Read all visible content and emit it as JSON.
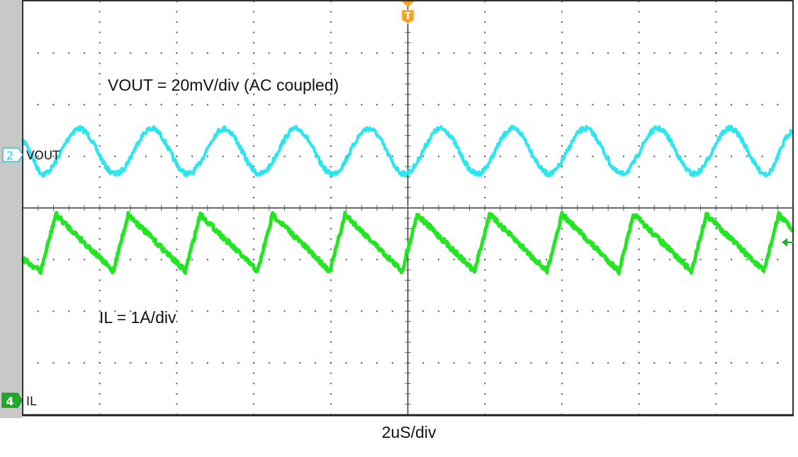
{
  "chart_data": {
    "type": "line",
    "annotations": {
      "vout_scale": "VOUT = 20mV/div (AC coupled)",
      "il_scale": "IL = 1A/div",
      "timebase": "2uS/div"
    },
    "x_unit": "us",
    "xlim": [
      -10,
      10
    ],
    "x_divisions": 10,
    "y_divisions": 8,
    "grid": true,
    "trigger_marker": "T",
    "series": [
      {
        "name": "VOUT",
        "channel": "2",
        "color": "#29e6f0",
        "unit": "mV",
        "scale_per_div": 20,
        "points": [
          [
            -10,
            4.9
          ],
          [
            -9.47,
            -7.5
          ],
          [
            -8.53,
            10
          ],
          [
            -7.59,
            -7.5
          ],
          [
            -6.65,
            10
          ],
          [
            -5.71,
            -7.5
          ],
          [
            -4.77,
            10
          ],
          [
            -3.84,
            -7.5
          ],
          [
            -2.9,
            10
          ],
          [
            -1.96,
            -7.5
          ],
          [
            -1.02,
            10
          ],
          [
            -0.08,
            -7.5
          ],
          [
            0.86,
            10
          ],
          [
            1.8,
            -7.5
          ],
          [
            2.73,
            10
          ],
          [
            3.67,
            -7.5
          ],
          [
            4.61,
            10
          ],
          [
            5.55,
            -7.5
          ],
          [
            6.49,
            10
          ],
          [
            7.43,
            -7.5
          ],
          [
            8.36,
            10
          ],
          [
            9.3,
            -7.5
          ],
          [
            10,
            9
          ]
        ]
      },
      {
        "name": "IL",
        "channel": "4",
        "color": "#22e622",
        "unit": "A",
        "scale_per_div": 1,
        "points": [
          [
            -10,
            2.74
          ],
          [
            -9.53,
            2.5
          ],
          [
            -9.14,
            3.6
          ],
          [
            -7.65,
            2.5
          ],
          [
            -7.26,
            3.6
          ],
          [
            -5.78,
            2.5
          ],
          [
            -5.39,
            3.6
          ],
          [
            -3.9,
            2.5
          ],
          [
            -3.51,
            3.6
          ],
          [
            -2.02,
            2.5
          ],
          [
            -1.63,
            3.6
          ],
          [
            -0.15,
            2.5
          ],
          [
            0.24,
            3.6
          ],
          [
            1.73,
            2.5
          ],
          [
            2.12,
            3.6
          ],
          [
            3.61,
            2.5
          ],
          [
            4.0,
            3.6
          ],
          [
            5.48,
            2.5
          ],
          [
            5.87,
            3.6
          ],
          [
            7.36,
            2.5
          ],
          [
            7.75,
            3.6
          ],
          [
            9.24,
            2.5
          ],
          [
            9.63,
            3.6
          ],
          [
            10,
            3.29
          ]
        ]
      }
    ]
  }
}
